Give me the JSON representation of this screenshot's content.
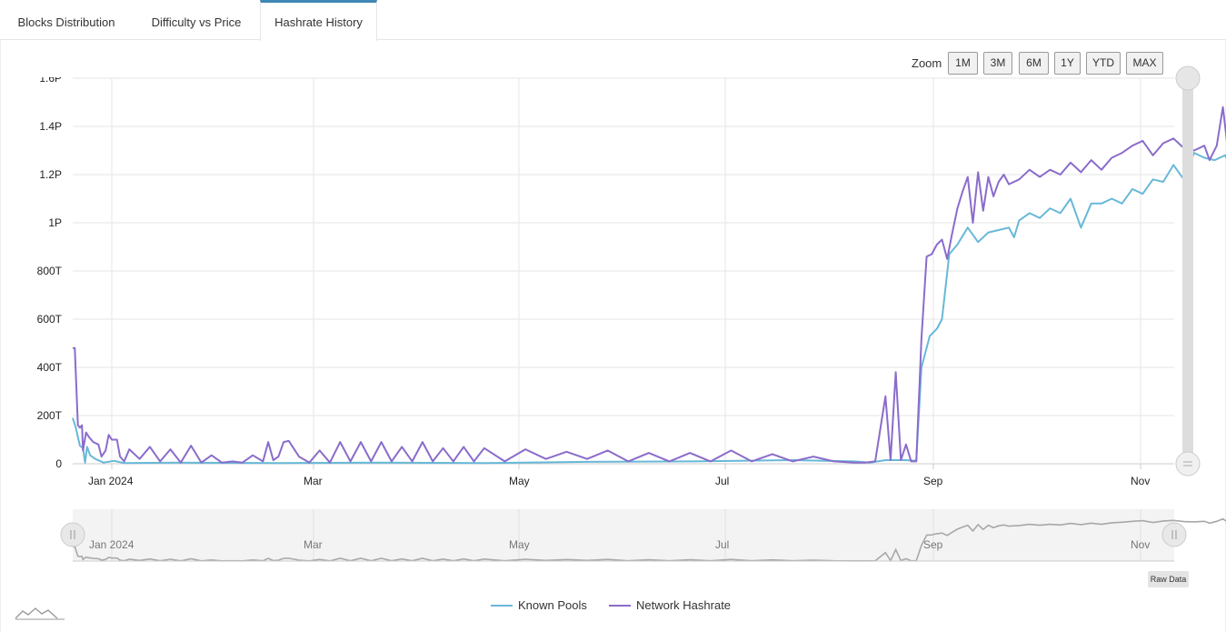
{
  "tabs": [
    {
      "label": "Blocks Distribution",
      "active": false
    },
    {
      "label": "Difficulty vs Price",
      "active": false
    },
    {
      "label": "Hashrate History",
      "active": true
    }
  ],
  "zoom": {
    "label": "Zoom",
    "buttons": [
      "1M",
      "3M",
      "6M",
      "1Y",
      "YTD",
      "MAX"
    ]
  },
  "raw_data_label": "Raw Data",
  "chart_data": {
    "type": "line",
    "x_labels": [
      "Jan 2024",
      "Mar",
      "May",
      "Jul",
      "Sep",
      "Nov"
    ],
    "y_tick_values": [
      0,
      200,
      400,
      600,
      800,
      1000,
      1200,
      1400,
      1600
    ],
    "y_tick_labels": [
      "0",
      "200T",
      "400T",
      "600T",
      "800T",
      "1P",
      "1.2P",
      "1.4P",
      "1.6P"
    ],
    "ylim": [
      0,
      1600
    ],
    "y_unit": "TH/s",
    "grid": true,
    "legend": "bottom-center",
    "navigator": true,
    "series": [
      {
        "name": "Known Pools",
        "color": "#68b8d8",
        "points": [
          [
            0,
            190
          ],
          [
            0.03,
            150
          ],
          [
            0.07,
            75
          ],
          [
            0.1,
            65
          ],
          [
            0.12,
            5
          ],
          [
            0.14,
            70
          ],
          [
            0.17,
            35
          ],
          [
            0.22,
            20
          ],
          [
            0.3,
            5
          ],
          [
            0.4,
            12
          ],
          [
            0.5,
            3
          ],
          [
            1.0,
            5
          ],
          [
            2.0,
            3
          ],
          [
            3.0,
            5
          ],
          [
            4.0,
            3
          ],
          [
            5.0,
            8
          ],
          [
            6.0,
            10
          ],
          [
            7.0,
            15
          ],
          [
            7.6,
            10
          ],
          [
            7.75,
            5
          ],
          [
            7.9,
            15
          ],
          [
            8.1,
            15
          ],
          [
            8.2,
            12
          ],
          [
            8.25,
            400
          ],
          [
            8.33,
            530
          ],
          [
            8.4,
            560
          ],
          [
            8.45,
            600
          ],
          [
            8.52,
            870
          ],
          [
            8.6,
            910
          ],
          [
            8.7,
            980
          ],
          [
            8.8,
            920
          ],
          [
            8.9,
            960
          ],
          [
            9.0,
            970
          ],
          [
            9.1,
            980
          ],
          [
            9.15,
            940
          ],
          [
            9.2,
            1010
          ],
          [
            9.3,
            1040
          ],
          [
            9.4,
            1020
          ],
          [
            9.5,
            1060
          ],
          [
            9.6,
            1040
          ],
          [
            9.7,
            1100
          ],
          [
            9.8,
            980
          ],
          [
            9.9,
            1080
          ],
          [
            10.0,
            1080
          ],
          [
            10.1,
            1100
          ],
          [
            10.2,
            1080
          ],
          [
            10.3,
            1140
          ],
          [
            10.4,
            1120
          ],
          [
            10.5,
            1180
          ],
          [
            10.6,
            1170
          ],
          [
            10.7,
            1240
          ],
          [
            10.8,
            1180
          ],
          [
            10.9,
            1290
          ],
          [
            11.0,
            1270
          ],
          [
            11.1,
            1260
          ],
          [
            11.2,
            1280
          ],
          [
            11.24,
            1250
          ]
        ]
      },
      {
        "name": "Network Hashrate",
        "color": "#8a6ccb",
        "points": [
          [
            0,
            480
          ],
          [
            0.02,
            480
          ],
          [
            0.05,
            160
          ],
          [
            0.07,
            150
          ],
          [
            0.09,
            160
          ],
          [
            0.1,
            55
          ],
          [
            0.13,
            130
          ],
          [
            0.16,
            110
          ],
          [
            0.2,
            90
          ],
          [
            0.25,
            80
          ],
          [
            0.28,
            30
          ],
          [
            0.32,
            55
          ],
          [
            0.35,
            120
          ],
          [
            0.38,
            100
          ],
          [
            0.43,
            100
          ],
          [
            0.46,
            30
          ],
          [
            0.5,
            10
          ],
          [
            0.55,
            60
          ],
          [
            0.65,
            20
          ],
          [
            0.75,
            70
          ],
          [
            0.85,
            10
          ],
          [
            0.95,
            60
          ],
          [
            1.05,
            5
          ],
          [
            1.15,
            75
          ],
          [
            1.25,
            5
          ],
          [
            1.35,
            35
          ],
          [
            1.45,
            5
          ],
          [
            1.55,
            10
          ],
          [
            1.65,
            5
          ],
          [
            1.75,
            35
          ],
          [
            1.85,
            10
          ],
          [
            1.9,
            90
          ],
          [
            1.95,
            15
          ],
          [
            2.0,
            30
          ],
          [
            2.05,
            90
          ],
          [
            2.1,
            95
          ],
          [
            2.2,
            30
          ],
          [
            2.3,
            5
          ],
          [
            2.4,
            55
          ],
          [
            2.5,
            5
          ],
          [
            2.6,
            90
          ],
          [
            2.7,
            10
          ],
          [
            2.8,
            90
          ],
          [
            2.9,
            10
          ],
          [
            3.0,
            90
          ],
          [
            3.1,
            10
          ],
          [
            3.2,
            70
          ],
          [
            3.3,
            10
          ],
          [
            3.4,
            90
          ],
          [
            3.5,
            10
          ],
          [
            3.6,
            65
          ],
          [
            3.7,
            10
          ],
          [
            3.8,
            70
          ],
          [
            3.9,
            10
          ],
          [
            4.0,
            65
          ],
          [
            4.2,
            10
          ],
          [
            4.4,
            60
          ],
          [
            4.6,
            20
          ],
          [
            4.8,
            50
          ],
          [
            5.0,
            20
          ],
          [
            5.2,
            55
          ],
          [
            5.4,
            10
          ],
          [
            5.6,
            45
          ],
          [
            5.8,
            10
          ],
          [
            6.0,
            45
          ],
          [
            6.2,
            10
          ],
          [
            6.4,
            55
          ],
          [
            6.6,
            10
          ],
          [
            6.8,
            40
          ],
          [
            7.0,
            10
          ],
          [
            7.2,
            30
          ],
          [
            7.4,
            10
          ],
          [
            7.6,
            5
          ],
          [
            7.7,
            5
          ],
          [
            7.8,
            10
          ],
          [
            7.9,
            280
          ],
          [
            7.95,
            15
          ],
          [
            8.0,
            380
          ],
          [
            8.05,
            15
          ],
          [
            8.1,
            80
          ],
          [
            8.15,
            10
          ],
          [
            8.2,
            10
          ],
          [
            8.25,
            520
          ],
          [
            8.3,
            860
          ],
          [
            8.35,
            870
          ],
          [
            8.4,
            910
          ],
          [
            8.45,
            930
          ],
          [
            8.5,
            850
          ],
          [
            8.55,
            960
          ],
          [
            8.6,
            1060
          ],
          [
            8.65,
            1130
          ],
          [
            8.7,
            1190
          ],
          [
            8.75,
            1000
          ],
          [
            8.8,
            1210
          ],
          [
            8.85,
            1050
          ],
          [
            8.9,
            1190
          ],
          [
            8.95,
            1110
          ],
          [
            9.0,
            1170
          ],
          [
            9.05,
            1200
          ],
          [
            9.1,
            1160
          ],
          [
            9.2,
            1180
          ],
          [
            9.3,
            1220
          ],
          [
            9.4,
            1190
          ],
          [
            9.5,
            1220
          ],
          [
            9.6,
            1200
          ],
          [
            9.7,
            1250
          ],
          [
            9.8,
            1210
          ],
          [
            9.9,
            1260
          ],
          [
            10.0,
            1220
          ],
          [
            10.1,
            1270
          ],
          [
            10.2,
            1290
          ],
          [
            10.3,
            1320
          ],
          [
            10.4,
            1340
          ],
          [
            10.5,
            1280
          ],
          [
            10.6,
            1330
          ],
          [
            10.7,
            1350
          ],
          [
            10.8,
            1310
          ],
          [
            10.9,
            1300
          ],
          [
            11.0,
            1320
          ],
          [
            11.05,
            1260
          ],
          [
            11.12,
            1320
          ],
          [
            11.18,
            1480
          ],
          [
            11.24,
            1260
          ]
        ]
      }
    ]
  }
}
